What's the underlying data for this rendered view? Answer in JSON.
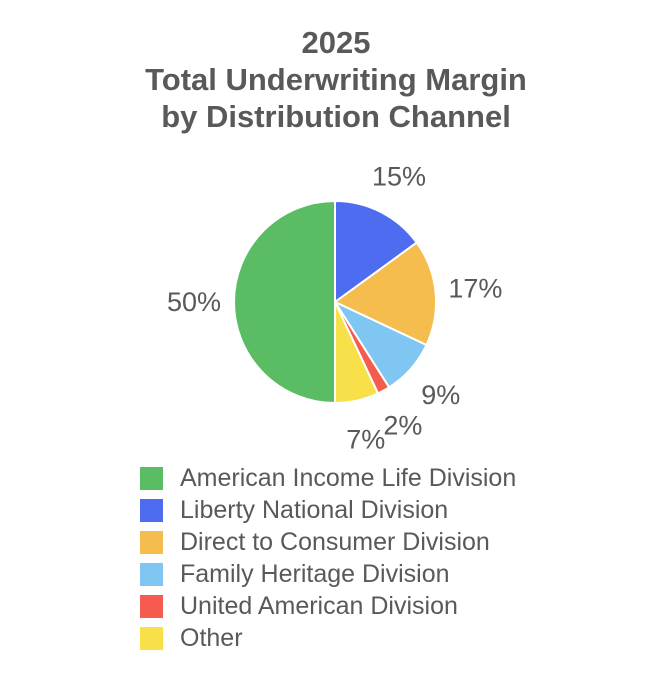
{
  "page": {
    "background": "#ffffff",
    "text_color": "#58595b"
  },
  "title": {
    "line1": "2025",
    "line2": "Total Underwriting Margin",
    "line3": "by Distribution Channel"
  },
  "chart_data": {
    "type": "pie",
    "title": "2025 Total Underwriting Margin by Distribution Channel",
    "unit": "%",
    "slices": [
      {
        "label": "American Income Life Division",
        "value": 50,
        "display": "50%",
        "color": "#5bbd63"
      },
      {
        "label": "Liberty National Division",
        "value": 15,
        "display": "15%",
        "color": "#4e6cf0"
      },
      {
        "label": "Direct to Consumer Division",
        "value": 17,
        "display": "17%",
        "color": "#f5bd4e"
      },
      {
        "label": "Family Heritage Division",
        "value": 9,
        "display": "9%",
        "color": "#7fc6f2"
      },
      {
        "label": "United American Division",
        "value": 2,
        "display": "2%",
        "color": "#f55b4e"
      },
      {
        "label": "Other",
        "value": 7,
        "display": "7%",
        "color": "#f8e04a"
      }
    ],
    "draw_order_clockwise_from_top": [
      "Liberty National Division",
      "Direct to Consumer Division",
      "Family Heritage Division",
      "United American Division",
      "Other",
      "American Income Life Division"
    ],
    "slice_border_color": "#ffffff",
    "label_color": "#58595b",
    "legend_position": "bottom-left",
    "legend_text_color": "#58595b"
  }
}
